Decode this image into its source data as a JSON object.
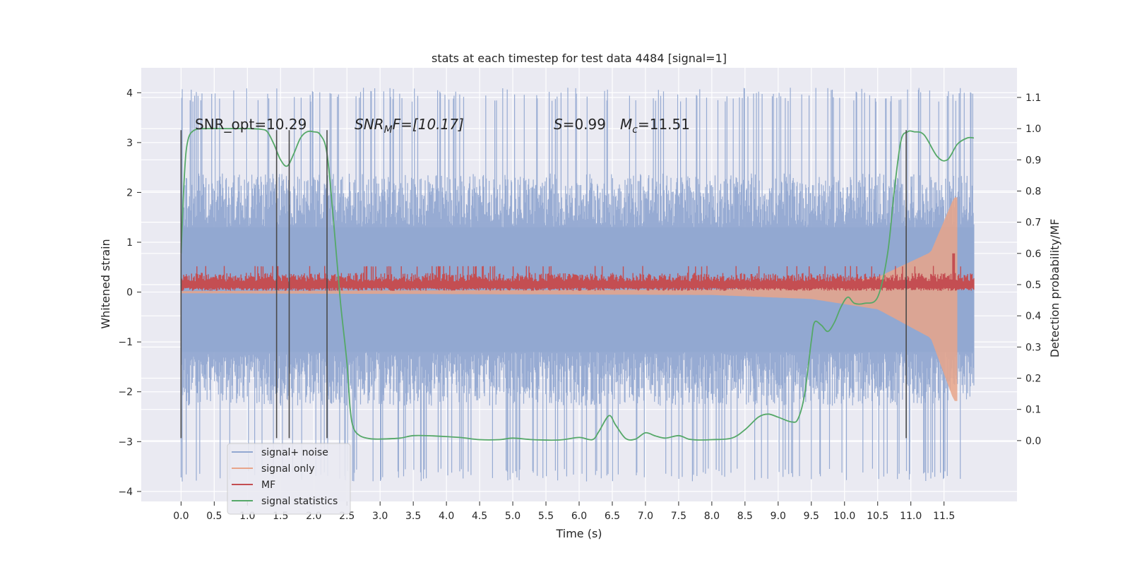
{
  "chart_data": {
    "type": "line",
    "title": "stats at each timestep for test data 4484 [signal=1]",
    "xlabel": "Time (s)",
    "ylabel": "Whitened strain",
    "y2label": "Detection probability/MF",
    "xlim": [
      -0.6,
      12.6
    ],
    "ylim": [
      -4.2,
      4.5
    ],
    "y2lim": [
      -0.195,
      1.195
    ],
    "xticks": [
      "0.0",
      "0.5",
      "1.0",
      "1.5",
      "2.0",
      "2.5",
      "3.0",
      "3.5",
      "4.0",
      "4.5",
      "5.0",
      "5.5",
      "6.0",
      "6.5",
      "7.0",
      "7.5",
      "8.0",
      "8.5",
      "9.0",
      "9.5",
      "10.0",
      "10.5",
      "11.0",
      "11.5"
    ],
    "yticks": [
      "4",
      "3",
      "2",
      "1",
      "0",
      "−1",
      "−2",
      "−3",
      "−4"
    ],
    "y2ticks": [
      "1.1",
      "1.0",
      "0.9",
      "0.8",
      "0.7",
      "0.6",
      "0.5",
      "0.4",
      "0.3",
      "0.2",
      "0.1",
      "0.0"
    ],
    "grid": true,
    "legend_position": "lower-left",
    "annotations": {
      "snr_opt": "SNR_opt=10.29",
      "snr_mf_main": "SNR",
      "snr_mf_sub": "M",
      "snr_mf_tail": "F=[10.17]",
      "s_label": "S",
      "s_value": "=0.99",
      "mc_label": "M",
      "mc_sub": "c",
      "mc_value": "=11.51"
    },
    "vertical_markers_x": [
      0.0,
      1.44,
      1.63,
      2.2,
      10.93
    ],
    "series": [
      {
        "name": "signal+ noise",
        "color": "#92a8d1",
        "t_range": [
          0.0,
          11.95
        ],
        "envelope_pos": [
          2.0,
          2.3,
          2.6,
          4.1
        ],
        "envelope_neg": [
          -1.5,
          -2.3,
          -2.8,
          -3.8
        ]
      },
      {
        "name": "signal only",
        "color": "#e8a58a",
        "t_range": [
          0.0,
          11.7
        ],
        "amplitude_at": {
          "t": [
            0,
            8.0,
            9.5,
            10.5,
            11.3,
            11.65
          ],
          "amp": [
            0.02,
            0.05,
            0.12,
            0.3,
            0.8,
            1.9
          ]
        }
      },
      {
        "name": "MF",
        "color": "#c44e52",
        "t_range": [
          0.0,
          11.95
        ],
        "baseline_y2": 0.5,
        "peak": {
          "t": 11.65,
          "y2": 0.6
        }
      },
      {
        "name": "signal statistics",
        "color": "#55a868",
        "t": [
          0.0,
          0.05,
          0.1,
          0.2,
          0.4,
          0.7,
          1.0,
          1.2,
          1.3,
          1.4,
          1.5,
          1.6,
          1.7,
          1.8,
          1.9,
          2.0,
          2.1,
          2.2,
          2.3,
          2.4,
          2.5,
          2.55,
          2.6,
          2.7,
          2.85,
          3.0,
          3.3,
          3.5,
          3.8,
          4.2,
          4.5,
          4.8,
          5.0,
          5.3,
          5.7,
          6.0,
          6.2,
          6.3,
          6.45,
          6.55,
          6.7,
          6.85,
          7.0,
          7.15,
          7.3,
          7.5,
          7.65,
          7.8,
          8.0,
          8.3,
          8.5,
          8.7,
          8.85,
          9.0,
          9.2,
          9.3,
          9.4,
          9.5,
          9.55,
          9.65,
          9.75,
          9.85,
          9.95,
          10.05,
          10.15,
          10.3,
          10.5,
          10.65,
          10.75,
          10.85,
          10.95,
          11.05,
          11.2,
          11.4,
          11.55,
          11.7,
          11.85,
          11.95
        ],
        "y2": [
          0.6,
          0.85,
          0.96,
          0.995,
          1.0,
          1.0,
          1.0,
          0.998,
          0.99,
          0.95,
          0.9,
          0.88,
          0.92,
          0.97,
          0.99,
          0.99,
          0.98,
          0.92,
          0.7,
          0.45,
          0.25,
          0.1,
          0.04,
          0.015,
          0.006,
          0.005,
          0.008,
          0.016,
          0.015,
          0.01,
          0.003,
          0.003,
          0.008,
          0.003,
          0.002,
          0.01,
          0.003,
          0.03,
          0.08,
          0.05,
          0.007,
          0.005,
          0.025,
          0.015,
          0.008,
          0.016,
          0.005,
          0.002,
          0.003,
          0.008,
          0.035,
          0.075,
          0.085,
          0.075,
          0.06,
          0.07,
          0.15,
          0.32,
          0.38,
          0.37,
          0.35,
          0.38,
          0.43,
          0.46,
          0.44,
          0.44,
          0.46,
          0.6,
          0.8,
          0.96,
          0.99,
          0.99,
          0.98,
          0.91,
          0.9,
          0.95,
          0.97,
          0.97
        ]
      }
    ]
  }
}
